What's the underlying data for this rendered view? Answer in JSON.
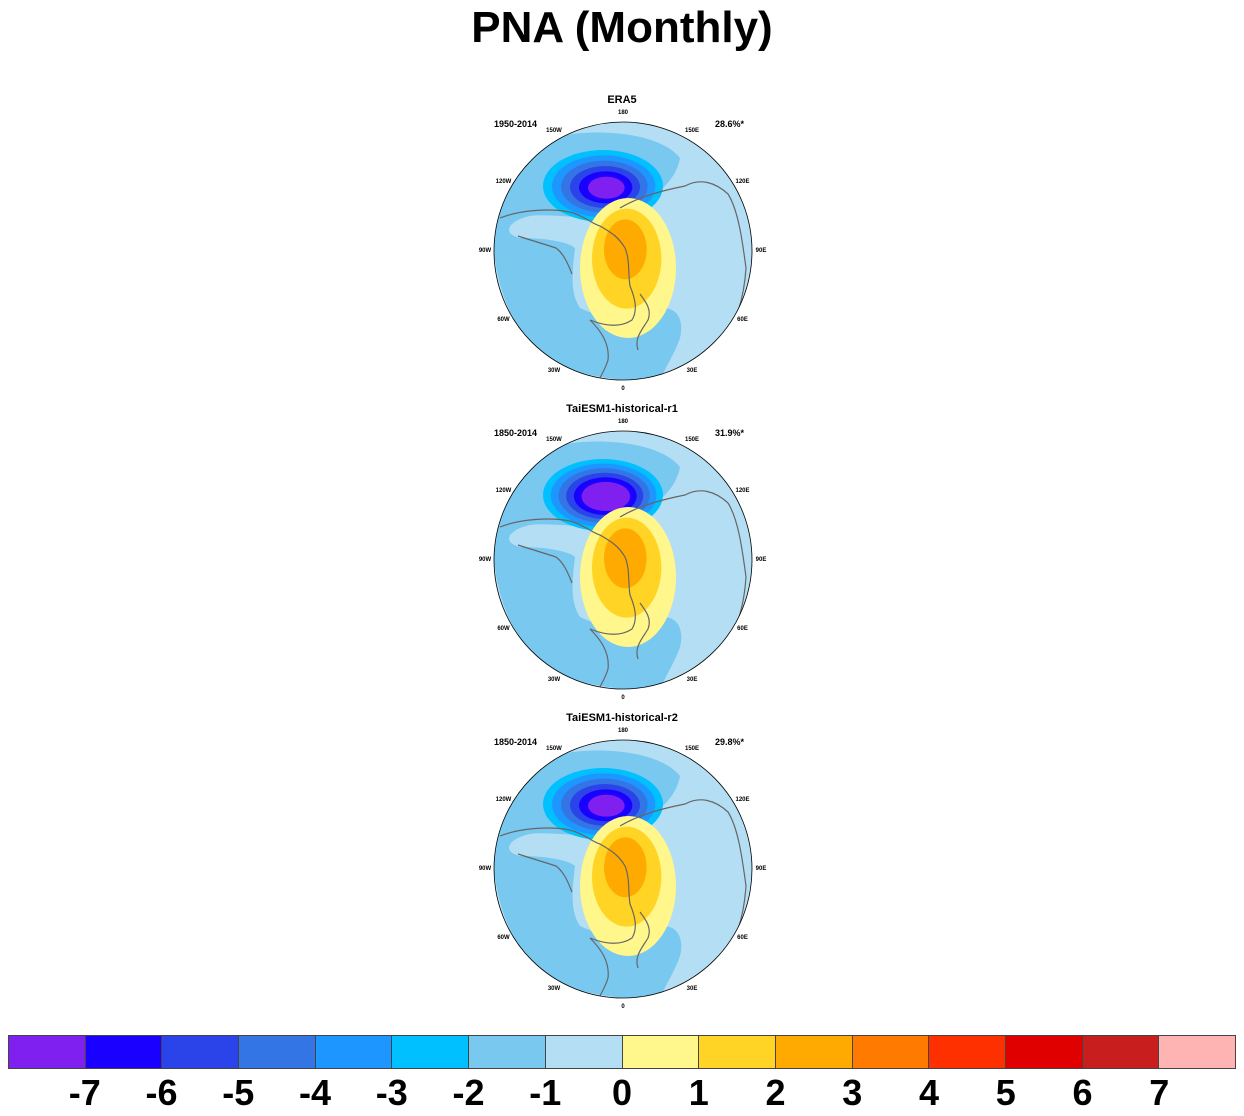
{
  "title": "PNA (Monthly)",
  "longitude_labels": [
    "180",
    "150E",
    "120E",
    "90E",
    "60E",
    "30E",
    "0",
    "30W",
    "60W",
    "90W",
    "120W",
    "150W"
  ],
  "chart_data": [
    {
      "type": "heatmap",
      "title": "ERA5",
      "period": "1950-2014",
      "variance_explained": "28.6%*",
      "low_center_min": -6,
      "high_center_max": 3
    },
    {
      "type": "heatmap",
      "title": "TaiESM1-historical-r1",
      "period": "1850-2014",
      "variance_explained": "31.9%*",
      "low_center_min": -7,
      "high_center_max": 3
    },
    {
      "type": "heatmap",
      "title": "TaiESM1-historical-r2",
      "period": "1850-2014",
      "variance_explained": "29.8%*",
      "low_center_min": -6,
      "high_center_max": 3
    }
  ],
  "colorbar": {
    "labels": [
      "-7",
      "-6",
      "-5",
      "-4",
      "-3",
      "-2",
      "-1",
      "0",
      "1",
      "2",
      "3",
      "4",
      "5",
      "6",
      "7"
    ],
    "colors": [
      "#8020f0",
      "#1a00ff",
      "#2a44ea",
      "#3475e6",
      "#1e96ff",
      "#00c0ff",
      "#78c8f0",
      "#b4def4",
      "#fff68c",
      "#ffd424",
      "#ffaa00",
      "#ff7a00",
      "#ff3000",
      "#e00000",
      "#c81e1e",
      "#ffb4b4"
    ]
  }
}
